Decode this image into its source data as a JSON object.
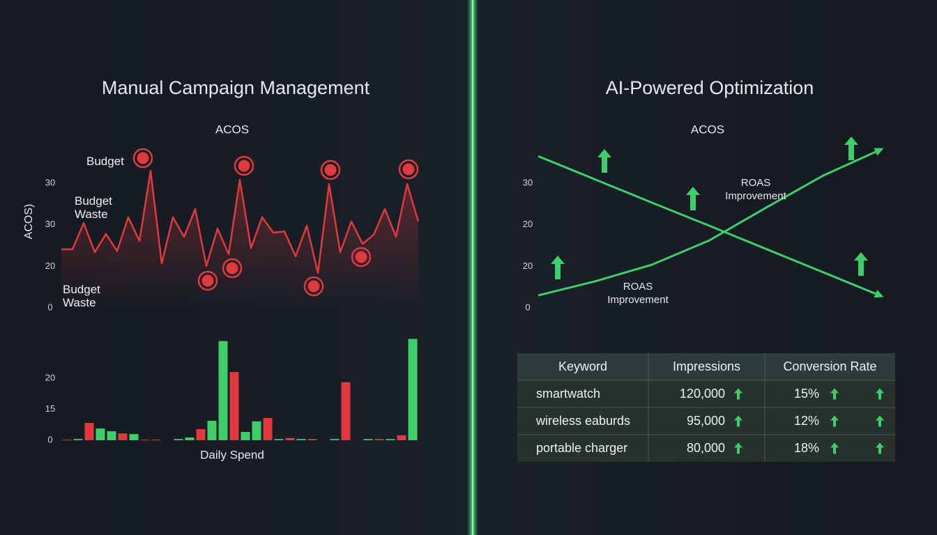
{
  "left": {
    "title": "Manual Campaign Management",
    "line_chart": {
      "type": "line",
      "title": "ACOS",
      "ylabel": "ACOS)",
      "ylim": [
        0,
        3
      ],
      "yticks": [
        {
          "value": 0,
          "label": "0"
        },
        {
          "value": 1,
          "label": "20"
        },
        {
          "value": 2,
          "label": "30"
        },
        {
          "value": 3,
          "label": "30"
        }
      ],
      "grid": true,
      "series": [
        {
          "color": "#e0393e",
          "values": [
            1.41,
            1.41,
            2.04,
            1.34,
            1.78,
            1.37,
            2.18,
            1.61,
            3.3,
            1.07,
            2.18,
            1.71,
            2.38,
            1.01,
            1.91,
            1.29,
            3.08,
            1.44,
            2.18,
            1.81,
            1.84,
            1.24,
            1.98,
            0.84,
            2.98,
            1.34,
            2.08,
            1.54,
            1.76,
            2.38,
            1.71,
            2.98,
            2.08
          ]
        }
      ],
      "annotations": [
        "Budget",
        "Budget Waste",
        "Budget Waste"
      ]
    },
    "bar_chart": {
      "type": "bar",
      "xlabel": "Daily Spend",
      "ylim": [
        0,
        3.3
      ],
      "yticks": [
        {
          "value": 0,
          "label": "0"
        },
        {
          "value": 1,
          "label": "15"
        },
        {
          "value": 2,
          "label": "20"
        }
      ],
      "grid": true,
      "series": [
        {
          "color": "#e0393e",
          "values": [
            0.02,
            null,
            0.56,
            null,
            null,
            0.22,
            null,
            0.02,
            0.02,
            null,
            null,
            null,
            0.36,
            null,
            null,
            2.2,
            null,
            null,
            0.72,
            null,
            0.07,
            null,
            0.04,
            null,
            null,
            1.87,
            null,
            null,
            0.04,
            null,
            0.16,
            null
          ]
        },
        {
          "color": "#3ecf6a",
          "values": [
            null,
            0.04,
            null,
            0.38,
            0.29,
            null,
            0.2,
            null,
            null,
            null,
            0.04,
            0.09,
            null,
            0.63,
            3.2,
            null,
            0.27,
            0.61,
            null,
            0.04,
            null,
            0.04,
            null,
            null,
            0.04,
            null,
            null,
            0.04,
            null,
            0.04,
            null,
            3.27
          ]
        }
      ]
    }
  },
  "right": {
    "title": "AI-Powered Optimization",
    "line_chart": {
      "type": "line",
      "title": "ACOS",
      "ylim": [
        0,
        3
      ],
      "yticks": [
        {
          "value": 0,
          "label": "0"
        },
        {
          "value": 1,
          "label": "20"
        },
        {
          "value": 2,
          "label": "20"
        },
        {
          "value": 3,
          "label": "30"
        }
      ],
      "grid": true,
      "series": [
        {
          "color": "#3ecf6a",
          "values": [
            3.65,
            3.09,
            2.53,
            1.98,
            1.42,
            0.86,
            0.3
          ]
        },
        {
          "color": "#3ecf6a",
          "values": [
            0.3,
            0.64,
            1.04,
            1.62,
            2.41,
            3.18,
            3.8
          ]
        }
      ],
      "annotations": [
        "ROAS Improvement",
        "ROAS Improvement"
      ]
    },
    "table": {
      "columns": [
        "Keyword",
        "Impressions",
        "Conversion Rate"
      ],
      "rows": [
        [
          "smartwatch",
          "120,000",
          "15%"
        ],
        [
          "wireless eaburds",
          "95,000",
          "12%"
        ],
        [
          "portable charger",
          "80,000",
          "18%"
        ]
      ]
    }
  }
}
